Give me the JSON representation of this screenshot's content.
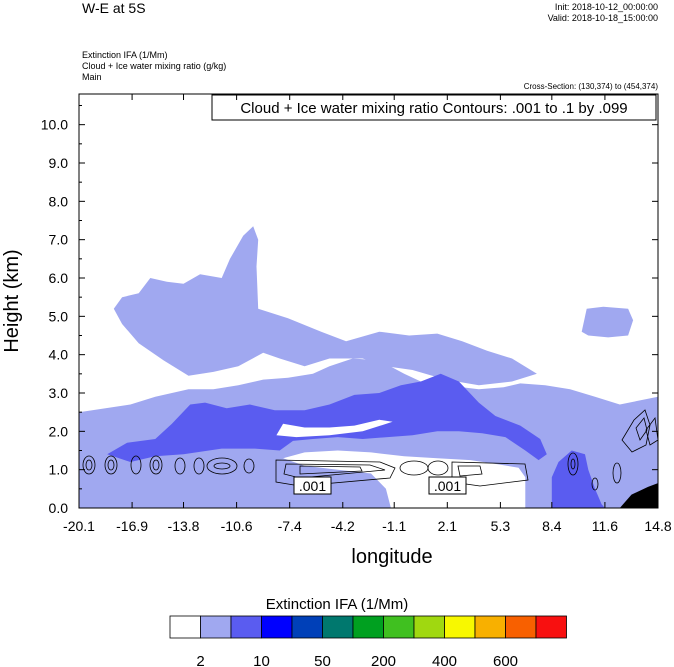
{
  "header": {
    "title": "W-E at 5S",
    "init": "Init: 2018-10-12_00:00:00",
    "valid": "Valid: 2018-10-18_15:00:00",
    "field1": "Extinction IFA   (1/Mm)",
    "field2": "Cloud + Ice water mixing ratio   (g/kg)",
    "field3": "Main",
    "cross_section": "Cross-Section: (130,374) to (454,374)"
  },
  "chart_data": {
    "type": "heatmap",
    "title": "W-E at 5S",
    "xlabel": "longitude",
    "ylabel": "Height (km)",
    "contour_label": "Cloud + Ice water mixing ratio Contours: .001 to .1 by .099",
    "contour_values": [
      ".001",
      ".001"
    ],
    "xlim": [
      -20.1,
      14.8
    ],
    "ylim": [
      0.0,
      10.8
    ],
    "x_ticks": [
      "-20.1",
      "-16.9",
      "-13.8",
      "-10.6",
      "-7.4",
      "-4.2",
      "-1.1",
      "2.1",
      "5.3",
      "8.4",
      "11.6",
      "14.8"
    ],
    "y_ticks": [
      "0.0",
      "1.0",
      "2.0",
      "3.0",
      "4.0",
      "5.0",
      "6.0",
      "7.0",
      "8.0",
      "9.0",
      "10.0"
    ],
    "x_tick_values": [
      -20.1,
      -16.9,
      -13.8,
      -10.6,
      -7.4,
      -4.2,
      -1.1,
      2.1,
      5.3,
      8.4,
      11.6,
      14.8
    ],
    "y_tick_values": [
      0,
      1,
      2,
      3,
      4,
      5,
      6,
      7,
      8,
      9,
      10
    ],
    "colorbar": {
      "title": "Extinction IFA  (1/Mm)",
      "labels": [
        "2",
        "10",
        "50",
        "200",
        "400",
        "600"
      ],
      "colors": [
        "#ffffff",
        "#a0a8f0",
        "#5a5cf0",
        "#0000ff",
        "#0040b8",
        "#00786e",
        "#00a020",
        "#40c020",
        "#a0d810",
        "#f8f800",
        "#f8b000",
        "#f86000",
        "#f81010"
      ]
    },
    "regions": [
      {
        "name": "extinction-2-10",
        "color": "#a0a8f0",
        "polygons": [
          [
            [
              -20.1,
              0
            ],
            [
              -20.1,
              2.5
            ],
            [
              -18.5,
              2.6
            ],
            [
              -17,
              2.7
            ],
            [
              -15.5,
              2.9
            ],
            [
              -13.5,
              3.1
            ],
            [
              -12,
              3.1
            ],
            [
              -10.5,
              3.2
            ],
            [
              -9,
              3.35
            ],
            [
              -7.5,
              3.4
            ],
            [
              -6,
              3.5
            ],
            [
              -5,
              3.7
            ],
            [
              -3.6,
              3.9
            ],
            [
              -2,
              3.85
            ],
            [
              -0.5,
              3.5
            ],
            [
              0.5,
              3.3
            ],
            [
              2,
              3.2
            ],
            [
              4,
              3.1
            ],
            [
              5.5,
              3.15
            ],
            [
              6.5,
              3.25
            ],
            [
              8,
              3.2
            ],
            [
              9.5,
              3.1
            ],
            [
              11,
              2.9
            ],
            [
              12.5,
              2.7
            ],
            [
              14.8,
              2.9
            ],
            [
              14.8,
              0
            ]
          ],
          [
            [
              -18,
              5.2
            ],
            [
              -17.5,
              5.5
            ],
            [
              -16.5,
              5.6
            ],
            [
              -15.8,
              6.0
            ],
            [
              -14.8,
              5.9
            ],
            [
              -13.8,
              5.85
            ],
            [
              -12.8,
              6.1
            ],
            [
              -11.5,
              6.0
            ],
            [
              -11,
              6.5
            ],
            [
              -10.2,
              7.1
            ],
            [
              -9.6,
              7.35
            ],
            [
              -9.3,
              7.0
            ],
            [
              -9.4,
              6.3
            ],
            [
              -9.3,
              5.2
            ],
            [
              -7.5,
              4.95
            ],
            [
              -5.5,
              4.6
            ],
            [
              -4,
              4.35
            ],
            [
              -2,
              4.6
            ],
            [
              -0.2,
              4.5
            ],
            [
              1.5,
              4.55
            ],
            [
              3,
              4.35
            ],
            [
              4.5,
              4.1
            ],
            [
              6,
              3.9
            ],
            [
              7.5,
              3.5
            ],
            [
              6,
              3.3
            ],
            [
              4,
              3.2
            ],
            [
              2,
              3.35
            ],
            [
              0,
              3.6
            ],
            [
              -1.6,
              3.7
            ],
            [
              -3,
              3.9
            ],
            [
              -5,
              3.9
            ],
            [
              -6.5,
              3.7
            ],
            [
              -8,
              3.9
            ],
            [
              -9,
              4.05
            ],
            [
              -10.5,
              3.7
            ],
            [
              -12,
              3.55
            ],
            [
              -13.5,
              3.45
            ],
            [
              -15,
              3.85
            ],
            [
              -16.5,
              4.3
            ],
            [
              -17.5,
              4.8
            ]
          ],
          [
            [
              10.2,
              4.6
            ],
            [
              10.5,
              5.2
            ],
            [
              11.5,
              5.25
            ],
            [
              13,
              5.2
            ],
            [
              13.3,
              4.9
            ],
            [
              13,
              4.5
            ],
            [
              11.8,
              4.45
            ],
            [
              10.6,
              4.5
            ]
          ],
          [
            [
              -16,
              5.15
            ],
            [
              -15.4,
              5.4
            ],
            [
              -15,
              5.15
            ],
            [
              -15.4,
              4.95
            ]
          ]
        ]
      },
      {
        "name": "extinction-10-50",
        "color": "#5a5cf0",
        "polygons": [
          [
            [
              -18.4,
              1.4
            ],
            [
              -17.2,
              1.7
            ],
            [
              -15.5,
              1.8
            ],
            [
              -14.5,
              2.2
            ],
            [
              -13.4,
              2.7
            ],
            [
              -12.5,
              2.75
            ],
            [
              -11.2,
              2.6
            ],
            [
              -9.8,
              2.7
            ],
            [
              -8.3,
              2.55
            ],
            [
              -6.5,
              2.55
            ],
            [
              -5,
              2.7
            ],
            [
              -3.5,
              2.95
            ],
            [
              -2,
              3.0
            ],
            [
              -0.7,
              3.2
            ],
            [
              0.5,
              3.3
            ],
            [
              1.7,
              3.5
            ],
            [
              2.8,
              3.3
            ],
            [
              4,
              2.75
            ],
            [
              5,
              2.4
            ],
            [
              6.5,
              2.15
            ],
            [
              7.7,
              1.8
            ],
            [
              8.1,
              1.4
            ],
            [
              7.6,
              1.25
            ],
            [
              6.8,
              1.5
            ],
            [
              5.6,
              1.85
            ],
            [
              4.2,
              1.95
            ],
            [
              2.8,
              2.0
            ],
            [
              1.5,
              2.0
            ],
            [
              0,
              1.9
            ],
            [
              -1.5,
              1.85
            ],
            [
              -3,
              1.8
            ],
            [
              -4.5,
              1.85
            ],
            [
              -6,
              1.8
            ],
            [
              -7.2,
              1.75
            ],
            [
              -8,
              1.5
            ],
            [
              -9.5,
              1.55
            ],
            [
              -11.5,
              1.55
            ],
            [
              -13.8,
              1.4
            ],
            [
              -15.5,
              1.35
            ],
            [
              -17,
              1.2
            ]
          ],
          [
            [
              8.4,
              0
            ],
            [
              8.4,
              0.8
            ],
            [
              8.8,
              1.2
            ],
            [
              9.6,
              1.5
            ],
            [
              10.4,
              1.4
            ],
            [
              10.6,
              1.0
            ],
            [
              11.0,
              0.5
            ],
            [
              11.4,
              0.1
            ],
            [
              11.6,
              0
            ]
          ]
        ]
      },
      {
        "name": "extinction-below-2",
        "color": "#ffffff",
        "polygons": [
          [
            [
              -7.8,
              1.3
            ],
            [
              -6.5,
              1.45
            ],
            [
              -4.5,
              1.5
            ],
            [
              -2.5,
              1.45
            ],
            [
              -0.5,
              1.35
            ],
            [
              1.5,
              1.3
            ],
            [
              3.5,
              1.25
            ],
            [
              5,
              1.15
            ],
            [
              6.4,
              1.05
            ],
            [
              6.8,
              0.8
            ],
            [
              6.8,
              0
            ],
            [
              -1.3,
              0
            ],
            [
              -1.6,
              0.5
            ],
            [
              -2.5,
              0.9
            ],
            [
              -4.5,
              1.0
            ],
            [
              -6.5,
              1.1
            ]
          ],
          [
            [
              -8.2,
              1.9
            ],
            [
              -7.8,
              2.2
            ],
            [
              -6.5,
              2.1
            ],
            [
              -5,
              2.1
            ],
            [
              -3.5,
              2.15
            ],
            [
              -2,
              2.3
            ],
            [
              -1.2,
              2.25
            ],
            [
              -3,
              2.0
            ],
            [
              -5,
              1.9
            ],
            [
              -7,
              1.85
            ]
          ]
        ]
      },
      {
        "name": "terrain",
        "color": "#000000",
        "polygons": [
          [
            [
              12.5,
              0
            ],
            [
              13.2,
              0.35
            ],
            [
              13.7,
              0.45
            ],
            [
              14.2,
              0.55
            ],
            [
              14.8,
              0.65
            ],
            [
              14.8,
              0
            ]
          ]
        ]
      }
    ]
  }
}
